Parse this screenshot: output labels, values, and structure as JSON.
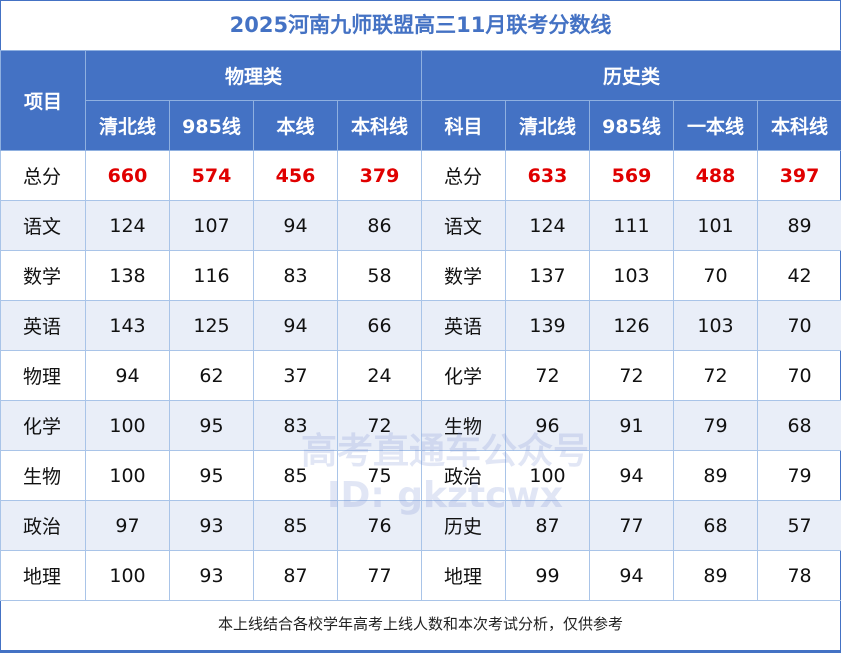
{
  "title": "2025河南九师联盟高三11月联考分数线",
  "header": {
    "item_label": "项目",
    "physics_group": "物理类",
    "history_group": "历史类",
    "physics_columns": [
      "清北线",
      "985线",
      "本线",
      "本科线"
    ],
    "history_columns": [
      "科目",
      "清北线",
      "985线",
      "一本线",
      "本科线"
    ]
  },
  "rows": [
    {
      "p_subject": "总分",
      "p": [
        "660",
        "574",
        "456",
        "379"
      ],
      "h_subject": "总分",
      "h": [
        "633",
        "569",
        "488",
        "397"
      ],
      "highlight": true
    },
    {
      "p_subject": "语文",
      "p": [
        "124",
        "107",
        "94",
        "86"
      ],
      "h_subject": "语文",
      "h": [
        "124",
        "111",
        "101",
        "89"
      ]
    },
    {
      "p_subject": "数学",
      "p": [
        "138",
        "116",
        "83",
        "58"
      ],
      "h_subject": "数学",
      "h": [
        "137",
        "103",
        "70",
        "42"
      ]
    },
    {
      "p_subject": "英语",
      "p": [
        "143",
        "125",
        "94",
        "66"
      ],
      "h_subject": "英语",
      "h": [
        "139",
        "126",
        "103",
        "70"
      ]
    },
    {
      "p_subject": "物理",
      "p": [
        "94",
        "62",
        "37",
        "24"
      ],
      "h_subject": "化学",
      "h": [
        "72",
        "72",
        "72",
        "70"
      ]
    },
    {
      "p_subject": "化学",
      "p": [
        "100",
        "95",
        "83",
        "72"
      ],
      "h_subject": "生物",
      "h": [
        "96",
        "91",
        "79",
        "68"
      ]
    },
    {
      "p_subject": "生物",
      "p": [
        "100",
        "95",
        "85",
        "75"
      ],
      "h_subject": "政治",
      "h": [
        "100",
        "94",
        "89",
        "79"
      ]
    },
    {
      "p_subject": "政治",
      "p": [
        "97",
        "93",
        "85",
        "76"
      ],
      "h_subject": "历史",
      "h": [
        "87",
        "77",
        "68",
        "57"
      ]
    },
    {
      "p_subject": "地理",
      "p": [
        "100",
        "93",
        "87",
        "77"
      ],
      "h_subject": "地理",
      "h": [
        "99",
        "94",
        "89",
        "78"
      ]
    }
  ],
  "footer": "本上线结合各校学年高考上线人数和本次考试分析，仅供参考",
  "watermark": {
    "line1": "高考直通车公众号",
    "line2": "ID: gkztcwx"
  },
  "colors": {
    "header_bg": "#4472c4",
    "highlight": "#e00000",
    "alt_row": "#e9eef8",
    "border": "#a9c4e8"
  }
}
